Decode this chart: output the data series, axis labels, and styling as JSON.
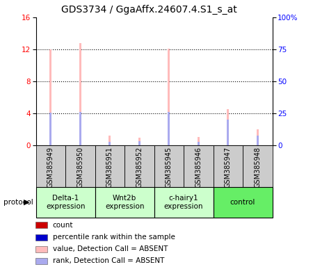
{
  "title": "GDS3734 / GgaAffx.24607.4.S1_s_at",
  "samples": [
    "GSM385949",
    "GSM385950",
    "GSM385951",
    "GSM385952",
    "GSM385945",
    "GSM385946",
    "GSM385947",
    "GSM385948"
  ],
  "groups": [
    {
      "name": "Delta-1\nexpression",
      "start": 0,
      "end": 1,
      "color": "#ccffcc"
    },
    {
      "name": "Wnt2b\nexpression",
      "start": 2,
      "end": 3,
      "color": "#ccffcc"
    },
    {
      "name": "c-hairy1\nexpression",
      "start": 4,
      "end": 5,
      "color": "#ccffcc"
    },
    {
      "name": "control",
      "start": 6,
      "end": 7,
      "color": "#66ee66"
    }
  ],
  "value_absent": [
    12.0,
    12.8,
    1.2,
    1.0,
    12.1,
    1.1,
    4.5,
    2.0
  ],
  "rank_absent": [
    4.1,
    4.2,
    0.5,
    0.55,
    4.2,
    0.5,
    3.2,
    1.2
  ],
  "ylim_left": [
    0,
    16
  ],
  "ylim_right": [
    0,
    100
  ],
  "yticks_left": [
    0,
    4,
    8,
    12,
    16
  ],
  "yticks_right": [
    0,
    25,
    50,
    75,
    100
  ],
  "bar_width": 0.07,
  "value_color": "#ffbbbb",
  "rank_color": "#aaaaee",
  "count_color": "#cc0000",
  "percentile_color": "#0000cc",
  "grid_color": "#000000",
  "sample_bg": "#cccccc",
  "title_fontsize": 10,
  "tick_fontsize": 7.5,
  "label_fontsize": 7,
  "legend_fontsize": 7.5
}
